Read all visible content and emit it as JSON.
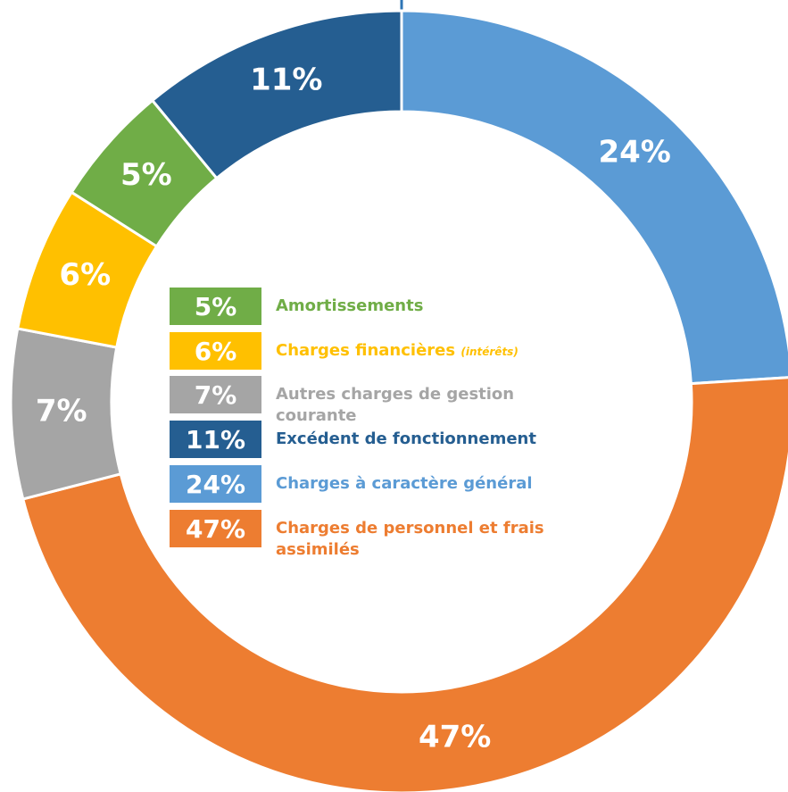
{
  "chart_data": {
    "type": "donut",
    "categories": [
      "Amortissements",
      "Charges financières",
      "Autres charges de gestion courante",
      "Excédent de fonctionnement",
      "Charges à caractère général",
      "Charges de personnel et frais assimilés"
    ],
    "category_notes": {
      "1": "(intérêts)"
    },
    "values": [
      5,
      6,
      7,
      11,
      24,
      47
    ],
    "value_labels": [
      "5%",
      "6%",
      "7%",
      "11%",
      "24%",
      "47%"
    ],
    "colors": [
      "#70ad47",
      "#ffc000",
      "#a5a5a5",
      "#255e91",
      "#5b9bd5",
      "#ed7d31"
    ]
  }
}
